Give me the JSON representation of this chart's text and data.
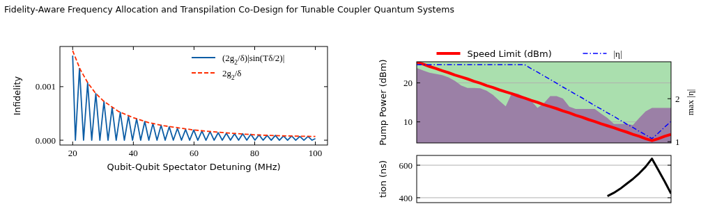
{
  "chart_data": [
    {
      "type": "line",
      "title": "Fidelity-Aware Frequency Allocation and Transpilation Co-Design for Tunable Coupler Quantum Systems",
      "xlabel": "Qubit-Qubit Spectator Detuning (MHz)",
      "ylabel": "Infidelity",
      "xlim": [
        15.8,
        104
      ],
      "ylim": [
        -9e-05,
        0.00175
      ],
      "xticks": [
        20,
        40,
        60,
        80,
        100
      ],
      "yticks": [
        {
          "value": 0,
          "label": "0.000"
        },
        {
          "value": 0.001,
          "label": "0.001"
        }
      ],
      "legend": "top right",
      "series": [
        {
          "name": "(2g$_{2}$/δ)|sin(Tδ/2)|",
          "color": "#0c5da5",
          "line_style": "solid",
          "x": [
            20,
            20.9,
            22.25,
            23.59,
            24.94,
            26.28,
            27.63,
            28.97,
            30.32,
            31.66,
            33.01,
            34.35,
            35.7,
            37.04,
            38.39,
            39.73,
            41.08,
            42.42,
            43.77,
            45.11,
            46.46,
            47.8,
            49.15,
            50.49,
            51.84,
            53.18,
            54.53,
            55.87,
            57.22,
            58.56,
            59.91,
            61.25,
            62.6,
            63.94,
            65.29,
            66.63,
            67.98,
            69.32,
            70.67,
            72.01,
            73.36,
            74.7,
            76.05,
            77.39,
            78.74,
            80.08,
            81.43,
            82.77,
            84.12,
            85.46,
            86.81,
            88.15,
            89.5,
            90.84,
            92.19,
            93.53,
            94.88,
            96.22,
            97.57,
            98.91,
            100
          ],
          "values": [
            0.00158,
            0,
            0.00134,
            0,
            0.00107,
            0,
            0.00087,
            0,
            0.00072,
            0,
            0.00061,
            0,
            0.00052,
            0,
            0.00045,
            0,
            0.0004,
            0,
            0.00035,
            0,
            0.00031,
            0,
            0.00028,
            0,
            0.00025,
            0,
            0.00022,
            0,
            0.0002,
            0,
            0.00019,
            0,
            0.00017,
            0,
            0.00016,
            0,
            0.00014,
            0,
            0.00013,
            0,
            0.00012,
            0,
            0.00012,
            0,
            0.00011,
            0,
            0.0001,
            0,
            9e-05,
            0,
            9e-05,
            0,
            8e-05,
            0,
            8e-05,
            0,
            7e-05,
            0,
            7e-05,
            0,
            3e-05
          ]
        },
        {
          "name": "2g$_{2}$/δ",
          "color": "#ff2c00",
          "line_style": "dashed",
          "x": [
            20,
            22.5,
            25,
            27.5,
            30,
            35,
            40,
            45,
            50,
            60,
            70,
            80,
            90,
            100
          ],
          "values": [
            0.00167,
            0.00132,
            0.00107,
            0.00088,
            0.00074,
            0.00054,
            0.00042,
            0.00033,
            0.00027,
            0.00019,
            0.00014,
            0.0001,
            8e-05,
            7e-05
          ]
        }
      ]
    },
    {
      "type": "area",
      "ylabel": "Pump Power (dBm)",
      "y2label": "max |η|",
      "categories": [
        null,
        null,
        null,
        null,
        null,
        null,
        null,
        null,
        null,
        null,
        null,
        null,
        null,
        null,
        null,
        null,
        null,
        null,
        null,
        null,
        null,
        null,
        null,
        null,
        null,
        null,
        null,
        null,
        null,
        null,
        null,
        null,
        null,
        null,
        null,
        null,
        null,
        null,
        null,
        null,
        null
      ],
      "ylim": [
        4.6,
        25.4
      ],
      "yticks": [
        10,
        20
      ],
      "y2lim": [
        0.97,
        2.86
      ],
      "y2ticks": [
        1,
        2
      ],
      "grid": "y",
      "tick_labels": "y",
      "legend": "top",
      "bands": [
        {
          "axis": "y",
          "from": 4.6,
          "to": 25.4,
          "color": "#aadfae"
        }
      ],
      "series": [
        {
          "color": "#9b80a6",
          "values": [
            23.8,
            23.2,
            22.6,
            22.3,
            22.0,
            21.4,
            20.5,
            19.3,
            18.7,
            18.7,
            18.6,
            18.0,
            16.9,
            15.4,
            14.0,
            17.5,
            17.2,
            16.3,
            15.4,
            13.6,
            14.8,
            16.6,
            16.6,
            16.0,
            13.9,
            13.3,
            13.3,
            13.3,
            13.3,
            12.1,
            11.0,
            9.5,
            9.5,
            9.5,
            9.2,
            11.0,
            12.7,
            13.6,
            13.6,
            13.6,
            13.6
          ]
        },
        {
          "type": "line",
          "name": "Speed Limit (dBm)",
          "color": "#ff0000",
          "line_style": "solid",
          "values": [
            25.3,
            24.8,
            24.2,
            23.7,
            23.1,
            22.6,
            22.0,
            21.5,
            21.0,
            20.4,
            19.9,
            19.3,
            18.8,
            18.2,
            17.7,
            17.2,
            16.6,
            16.1,
            15.5,
            15.0,
            14.4,
            13.9,
            13.4,
            12.8,
            12.3,
            11.7,
            11.2,
            10.6,
            10.1,
            9.5,
            9.0,
            8.5,
            7.9,
            7.4,
            6.8,
            6.3,
            5.7,
            5.2,
            5.7,
            6.3,
            6.8
          ]
        },
        {
          "type": "line",
          "name": "|η|",
          "color": "#0000ff",
          "line_style": "dashdot",
          "axis": "y2",
          "values": [
            2.79,
            2.79,
            2.79,
            2.79,
            2.79,
            2.79,
            2.79,
            2.79,
            2.79,
            2.79,
            2.79,
            2.79,
            2.79,
            2.79,
            2.79,
            2.79,
            2.79,
            2.79,
            2.7,
            2.62,
            2.53,
            2.45,
            2.36,
            2.27,
            2.19,
            2.1,
            2.02,
            1.93,
            1.84,
            1.76,
            1.67,
            1.59,
            1.5,
            1.41,
            1.33,
            1.24,
            1.16,
            1.07,
            1.2,
            1.34,
            1.47
          ]
        }
      ]
    },
    {
      "type": "line",
      "ylabel": "tion (ns)",
      "categories": [
        null,
        null,
        null,
        null,
        null,
        null,
        null,
        null,
        null,
        null,
        null,
        null,
        null,
        null,
        null,
        null,
        null,
        null,
        null,
        null,
        null,
        null,
        null,
        null,
        null,
        null,
        null,
        null,
        null,
        null,
        null,
        null,
        null,
        null,
        null,
        null,
        null,
        null,
        null,
        null,
        null
      ],
      "ylim": [
        370,
        660
      ],
      "yticks": [
        400,
        600
      ],
      "grid": "y",
      "tick_labels": "y",
      "series": [
        {
          "color": "#000000",
          "values": [
            null,
            null,
            null,
            null,
            null,
            null,
            null,
            null,
            null,
            null,
            null,
            null,
            null,
            null,
            null,
            null,
            null,
            null,
            null,
            null,
            null,
            null,
            null,
            null,
            null,
            null,
            null,
            null,
            null,
            null,
            410,
            430,
            455,
            485,
            515,
            550,
            590,
            640,
            570,
            500,
            425
          ]
        }
      ]
    }
  ]
}
